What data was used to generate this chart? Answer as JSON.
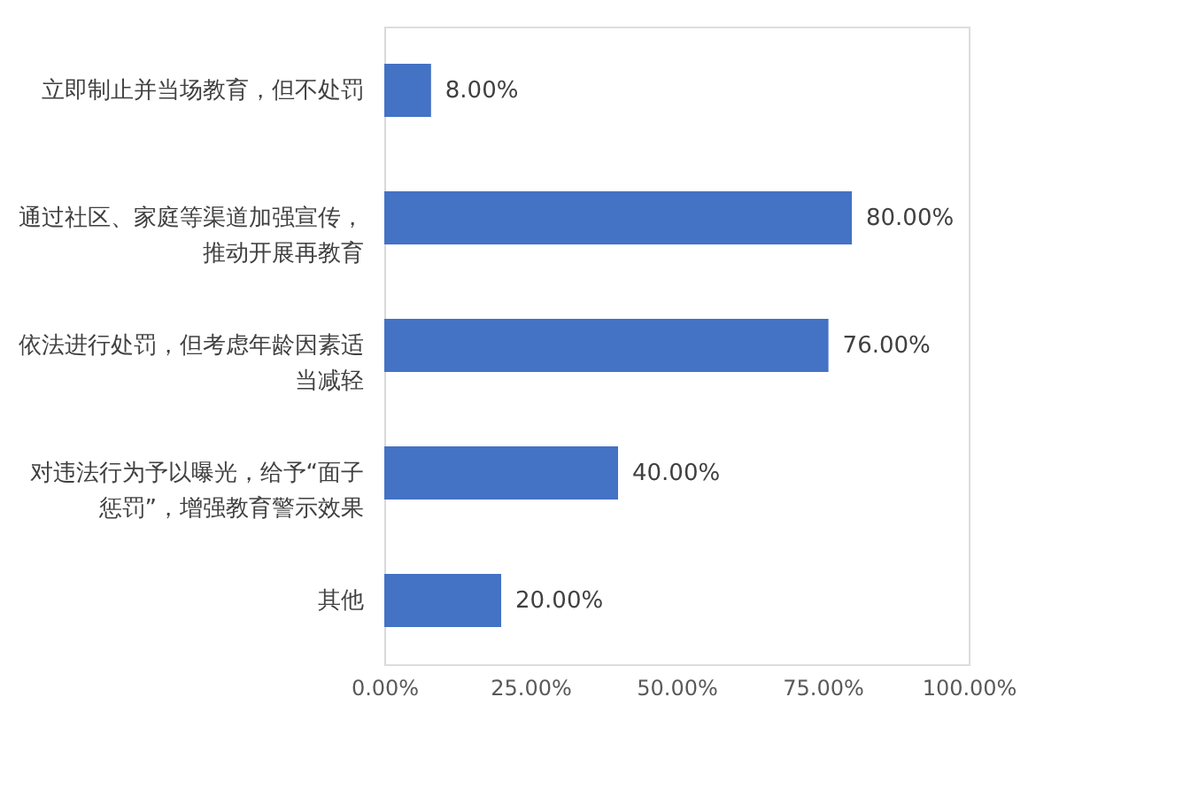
{
  "chart_data": {
    "type": "bar",
    "orientation": "horizontal",
    "categories": [
      "立即制止并当场教育，但不处罚",
      "通过社区、家庭等渠道加强宣传，推动开展再教育",
      "依法进行处罚，但考虑年龄因素适当减轻",
      "对违法行为予以曝光，给予“面子惩罚”，增强教育警示效果",
      "其他"
    ],
    "values": [
      8,
      80,
      76,
      40,
      20
    ],
    "color": "#4472c4",
    "xlim": [
      0,
      100
    ],
    "xticks": [
      {
        "value": 0,
        "label": "0.00%"
      },
      {
        "value": 25,
        "label": "25.00%"
      },
      {
        "value": 50,
        "label": "50.00%"
      },
      {
        "value": 75,
        "label": "75.00%"
      },
      {
        "value": 100,
        "label": "100.00%"
      }
    ],
    "value_labels": [
      "8.00%",
      "80.00%",
      "76.00%",
      "40.00%",
      "20.00%"
    ],
    "grid": false
  }
}
